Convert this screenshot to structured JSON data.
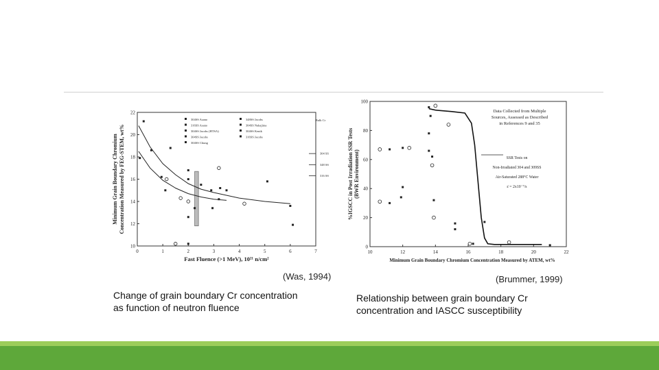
{
  "slide": {
    "left_citation": "(Was, 1994)",
    "right_citation": "(Brummer, 1999)",
    "left_caption_line1": "Change of grain boundary Cr concentration",
    "left_caption_line2": "as function of neutron fluence",
    "right_caption_line1": "Relationship between grain boundary Cr",
    "right_caption_line2": "concentration and IASCC susceptibility"
  },
  "colors": {
    "accent_light": "#9ccd5a",
    "accent_dark": "#5ea83a",
    "rule": "#cfcfcf"
  },
  "chart_data": [
    {
      "type": "scatter",
      "xlabel": "Fast Fluence (>1 MeV), 10²¹ n/cm²",
      "ylabel_line1": "Minimum Grain Boundary Chromium",
      "ylabel_line2": "Concentration Measured by FEG-STEM, wt%",
      "xlim": [
        0,
        7
      ],
      "ylim": [
        10,
        22
      ],
      "x_ticks": [
        "0",
        "1",
        "2",
        "3",
        "4",
        "5",
        "6",
        "7"
      ],
      "y_ticks": [
        "10",
        "12",
        "14",
        "16",
        "18",
        "20",
        "22"
      ],
      "legend": [
        "304SS Asano",
        "316SS Asano",
        "304SS Jacobs (HTSA)",
        "304SS Jacobs",
        "304SS Chung",
        "348SS Jacobs",
        "304SS Nakajima",
        "304SS Kenik",
        "316SS Jacobs"
      ],
      "bulk_label": "Bulk Cr",
      "bulk_markers": [
        {
          "label": "304 SS",
          "y": 18.3
        },
        {
          "label": "348 SS",
          "y": 17.3
        },
        {
          "label": "316 SS",
          "y": 16.3
        }
      ],
      "points": [
        {
          "x": 0.25,
          "y": 21.2
        },
        {
          "x": 0.55,
          "y": 18.6
        },
        {
          "x": 0.95,
          "y": 16.2
        },
        {
          "x": 1.15,
          "y": 16.0
        },
        {
          "x": 1.3,
          "y": 18.8
        },
        {
          "x": 1.1,
          "y": 15.0
        },
        {
          "x": 2.0,
          "y": 16.8
        },
        {
          "x": 2.0,
          "y": 14.0
        },
        {
          "x": 2.0,
          "y": 12.6
        },
        {
          "x": 2.0,
          "y": 16.0
        },
        {
          "x": 2.25,
          "y": 13.4
        },
        {
          "x": 1.7,
          "y": 14.3
        },
        {
          "x": 2.5,
          "y": 15.5
        },
        {
          "x": 2.9,
          "y": 15.0
        },
        {
          "x": 2.95,
          "y": 13.4
        },
        {
          "x": 3.2,
          "y": 17.0
        },
        {
          "x": 3.2,
          "y": 14.2
        },
        {
          "x": 3.25,
          "y": 15.2
        },
        {
          "x": 3.5,
          "y": 15.0
        },
        {
          "x": 4.2,
          "y": 13.8
        },
        {
          "x": 5.1,
          "y": 15.8
        },
        {
          "x": 6.0,
          "y": 13.6
        },
        {
          "x": 6.1,
          "y": 11.9
        },
        {
          "x": 1.5,
          "y": 10.2
        },
        {
          "x": 2.0,
          "y": 10.2
        },
        {
          "x": 0.1,
          "y": 17.9
        }
      ],
      "fit_lines": [
        {
          "x": [
            0.05,
            0.5,
            1,
            1.5,
            2,
            2.5,
            3,
            4,
            5,
            6
          ],
          "y": [
            20.8,
            18.9,
            17.4,
            16.4,
            15.6,
            15.1,
            14.8,
            14.3,
            14.0,
            13.8
          ]
        },
        {
          "x": [
            0.05,
            0.5,
            1,
            1.5,
            2,
            2.5,
            3,
            3.5
          ],
          "y": [
            18.5,
            17.0,
            15.9,
            15.2,
            14.7,
            14.4,
            14.2,
            14.1
          ]
        }
      ],
      "shaded_band": {
        "x": [
          2.25,
          2.4
        ],
        "y": [
          11.8,
          16.7
        ]
      }
    },
    {
      "type": "scatter",
      "xlabel": "Minimum Grain Boundary Chromium Concentration Measured by ATEM, wt%",
      "ylabel_line1": "%IGSCC in Post Irradiation SSR Tests",
      "ylabel_line2": "(BWR Environment)",
      "xlim": [
        10,
        22
      ],
      "ylim": [
        0,
        100
      ],
      "x_ticks": [
        "10",
        "12",
        "14",
        "16",
        "18",
        "20",
        "22"
      ],
      "y_ticks": [
        "0",
        "20",
        "40",
        "60",
        "80",
        "100"
      ],
      "annotation_top": [
        "Data Collected from Multiple",
        "Sources, Assessed as Described",
        "in References 9 and 35"
      ],
      "annotation_mid": [
        "SSR Tests on",
        "Non-Irradiated 304 and 309SS",
        "Air-Saturated 288°C Water",
        "ε̇ = 2x10⁻⁷/s"
      ],
      "trend": {
        "x": [
          13.6,
          14.0,
          15.0,
          15.8,
          16.2,
          16.4,
          16.6,
          16.8,
          17.0,
          17.2,
          17.6,
          18.5,
          20.5
        ],
        "y": [
          95,
          94,
          93,
          92,
          85,
          70,
          45,
          20,
          6,
          2,
          1.5,
          1.5,
          1.5
        ]
      },
      "points": [
        {
          "x": 10.6,
          "y": 67
        },
        {
          "x": 11.2,
          "y": 67
        },
        {
          "x": 12.0,
          "y": 68
        },
        {
          "x": 12.4,
          "y": 68
        },
        {
          "x": 13.6,
          "y": 66
        },
        {
          "x": 13.8,
          "y": 62
        },
        {
          "x": 13.8,
          "y": 56
        },
        {
          "x": 12.0,
          "y": 41
        },
        {
          "x": 11.9,
          "y": 34
        },
        {
          "x": 10.6,
          "y": 31
        },
        {
          "x": 11.2,
          "y": 30
        },
        {
          "x": 13.9,
          "y": 32
        },
        {
          "x": 13.9,
          "y": 20
        },
        {
          "x": 13.6,
          "y": 78
        },
        {
          "x": 13.7,
          "y": 90
        },
        {
          "x": 14.8,
          "y": 84
        },
        {
          "x": 15.2,
          "y": 16
        },
        {
          "x": 15.2,
          "y": 12
        },
        {
          "x": 16.1,
          "y": 2
        },
        {
          "x": 16.3,
          "y": 2
        },
        {
          "x": 17.0,
          "y": 17
        },
        {
          "x": 18.5,
          "y": 3
        },
        {
          "x": 21.0,
          "y": 1
        },
        {
          "x": 13.6,
          "y": 96
        },
        {
          "x": 14.0,
          "y": 97
        }
      ]
    }
  ]
}
